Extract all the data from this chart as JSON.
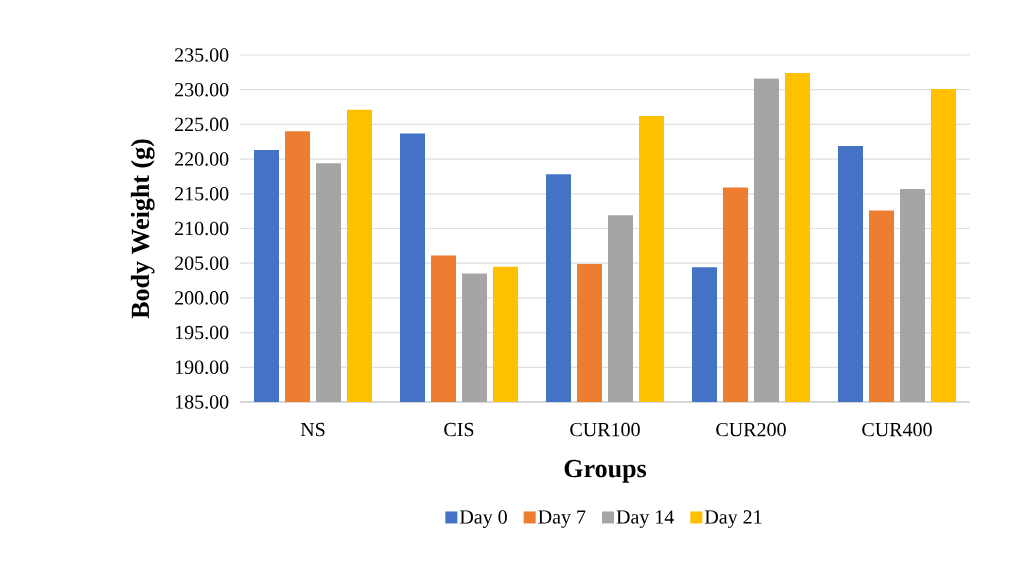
{
  "chart_data": {
    "type": "bar",
    "xlabel": "Groups",
    "ylabel": "Body Weight (g)",
    "categories": [
      "NS",
      "CIS",
      "CUR100",
      "CUR200",
      "CUR400"
    ],
    "series": [
      {
        "name": "Day 0",
        "color": "#4472c4",
        "values": [
          221.3,
          223.7,
          217.8,
          204.4,
          221.9
        ]
      },
      {
        "name": "Day 7",
        "color": "#ed7d31",
        "values": [
          224.0,
          206.1,
          204.9,
          215.9,
          212.6
        ]
      },
      {
        "name": "Day 14",
        "color": "#a5a5a5",
        "values": [
          219.4,
          203.5,
          211.9,
          231.6,
          215.7
        ]
      },
      {
        "name": "Day 21",
        "color": "#ffc000",
        "values": [
          227.1,
          204.5,
          226.2,
          232.4,
          230.1
        ]
      }
    ],
    "ylim": [
      185,
      235
    ],
    "yticks": [
      {
        "value": 185,
        "label": "185.00"
      },
      {
        "value": 190,
        "label": "190.00"
      },
      {
        "value": 195,
        "label": "195.00"
      },
      {
        "value": 200,
        "label": "200.00"
      },
      {
        "value": 205,
        "label": "205.00"
      },
      {
        "value": 210,
        "label": "210.00"
      },
      {
        "value": 215,
        "label": "215.00"
      },
      {
        "value": 220,
        "label": "220.00"
      },
      {
        "value": 225,
        "label": "225.00"
      },
      {
        "value": 230,
        "label": "230.00"
      },
      {
        "value": 235,
        "label": "235.00"
      }
    ],
    "grid": "y",
    "legend": "bottom"
  }
}
